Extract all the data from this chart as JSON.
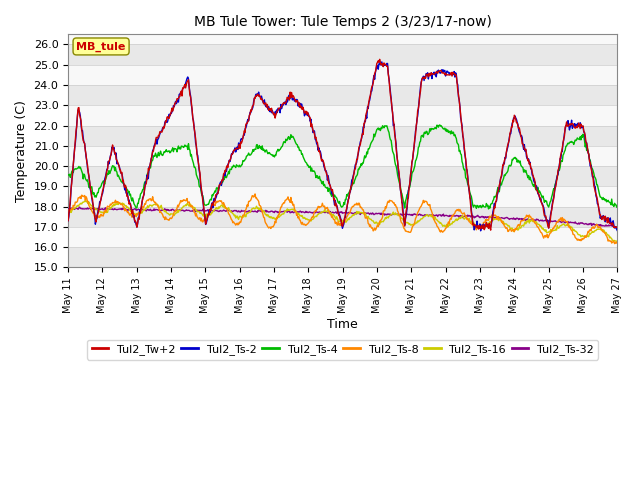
{
  "title": "MB Tule Tower: Tule Temps 2 (3/23/17-now)",
  "xlabel": "Time",
  "ylabel": "Temperature (C)",
  "ylim": [
    15.0,
    26.5
  ],
  "yticks": [
    15.0,
    16.0,
    17.0,
    18.0,
    19.0,
    20.0,
    21.0,
    22.0,
    23.0,
    24.0,
    25.0,
    26.0
  ],
  "xlim_days": 16,
  "xtick_labels": [
    "May 11",
    "May 12",
    "May 13",
    "May 14",
    "May 15",
    "May 16",
    "May 17",
    "May 18",
    "May 19",
    "May 20",
    "May 21",
    "May 22",
    "May 23",
    "May 24",
    "May 25",
    "May 26",
    "May 27"
  ],
  "legend_label": "MB_tule",
  "series": {
    "Tul2_Tw+2": {
      "color": "#cc0000",
      "lw": 1.0
    },
    "Tul2_Ts-2": {
      "color": "#0000cc",
      "lw": 1.0
    },
    "Tul2_Ts-4": {
      "color": "#00bb00",
      "lw": 1.0
    },
    "Tul2_Ts-8": {
      "color": "#ff8800",
      "lw": 1.0
    },
    "Tul2_Ts-16": {
      "color": "#cccc00",
      "lw": 1.0
    },
    "Tul2_Ts-32": {
      "color": "#880088",
      "lw": 1.0
    }
  },
  "background_color": "#ffffff",
  "grid_color": "#cccccc",
  "band_color1": "#e8e8e8",
  "band_color2": "#f8f8f8"
}
